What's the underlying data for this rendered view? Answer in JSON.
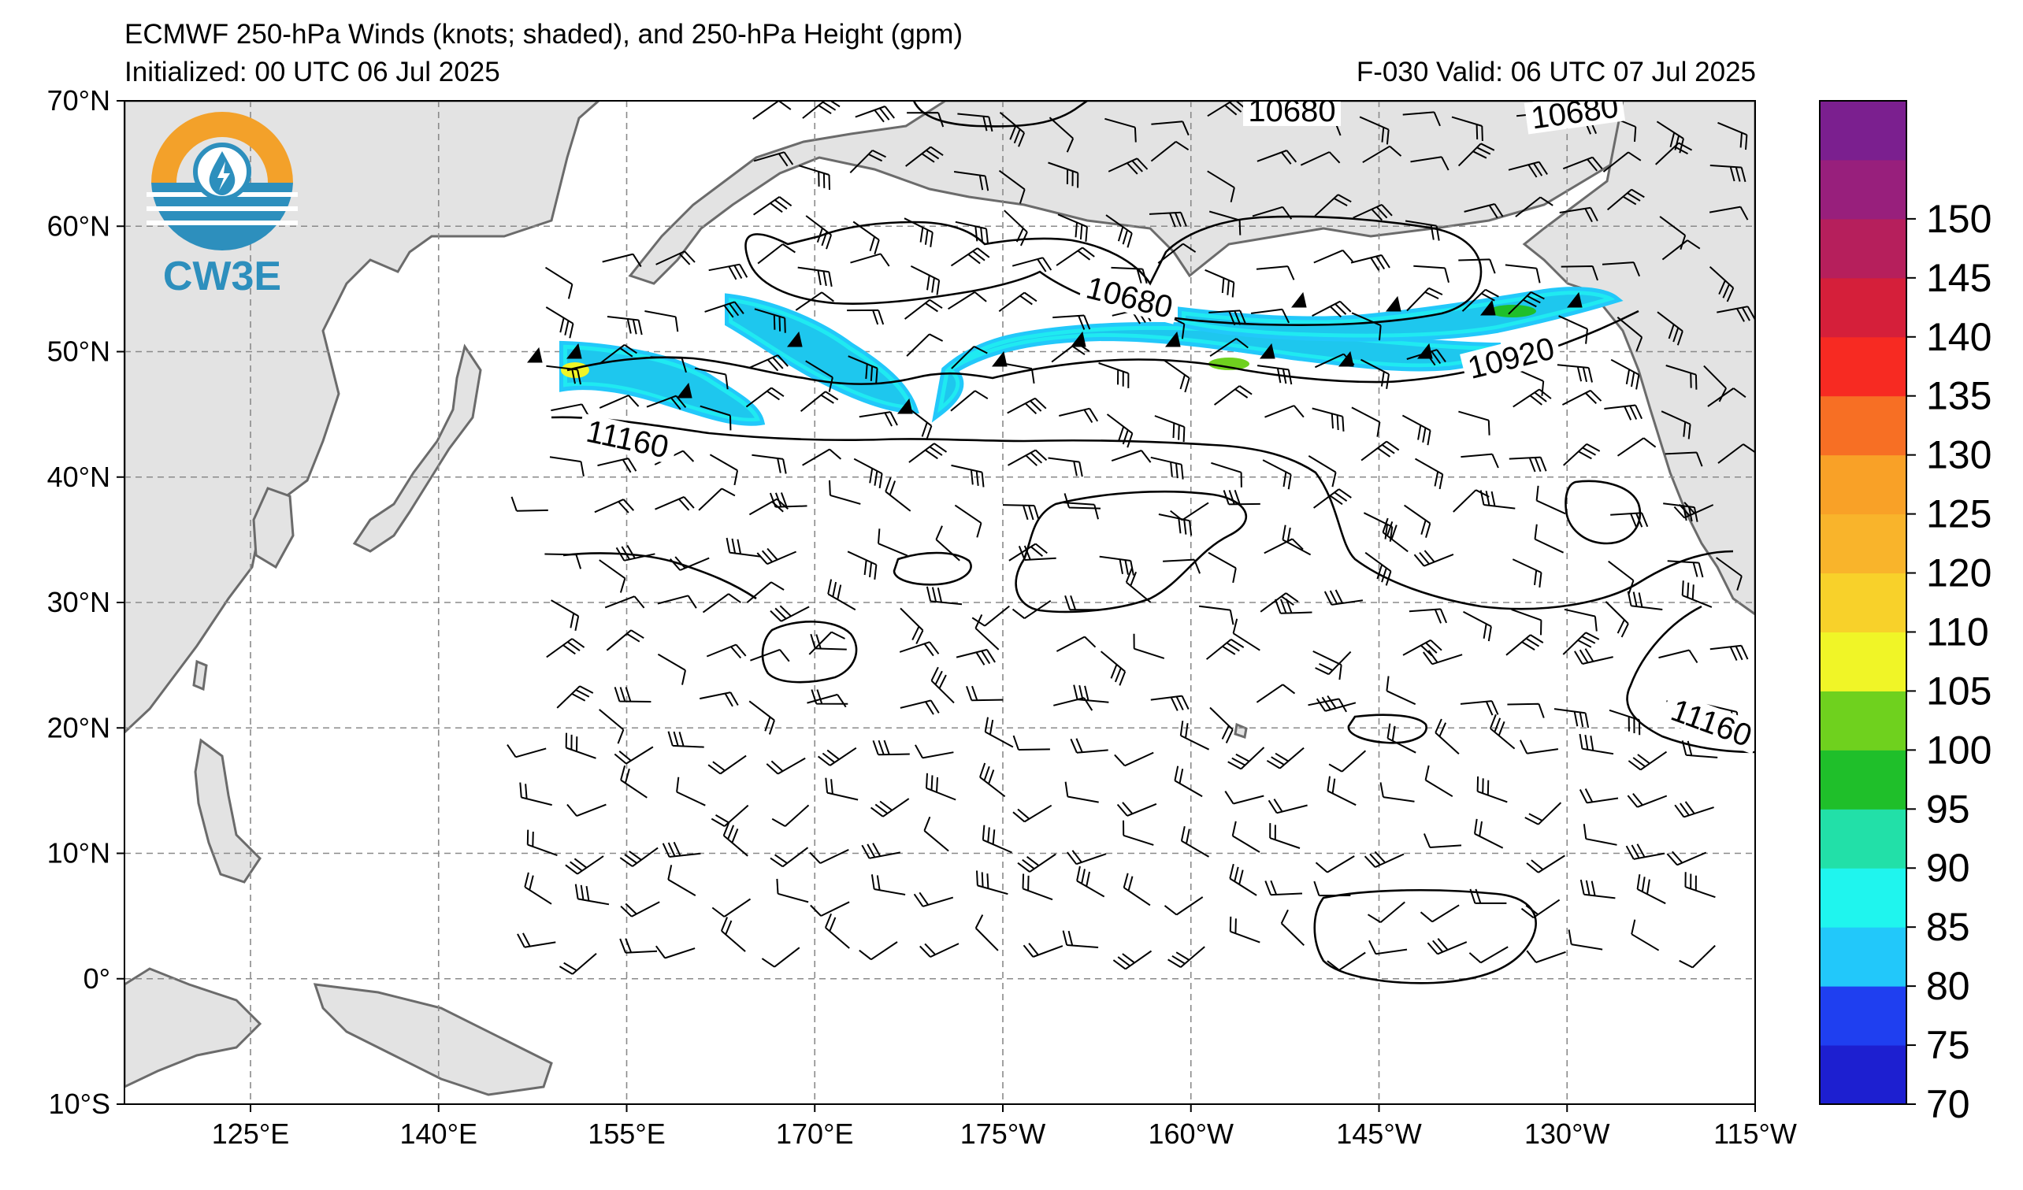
{
  "title_line1": "ECMWF 250-hPa Winds (knots; shaded), and 250-hPa Height (gpm)",
  "initialized": "Initialized: 00 UTC 06 Jul 2025",
  "valid": "F-030  Valid: 06 UTC 07 Jul 2025",
  "logo_text": "CW3E",
  "map": {
    "lon_labels": [
      "125°E",
      "140°E",
      "155°E",
      "170°E",
      "175°W",
      "160°W",
      "145°W",
      "130°W",
      "115°W"
    ],
    "lat_labels": [
      "70°N",
      "60°N",
      "50°N",
      "40°N",
      "30°N",
      "20°N",
      "10°N",
      "0°",
      "10°S"
    ],
    "contour_labels": [
      {
        "text": "10680"
      },
      {
        "text": "10680"
      },
      {
        "text": "10680"
      },
      {
        "text": "10920"
      },
      {
        "text": "11160"
      },
      {
        "text": "11160"
      }
    ]
  },
  "colorbar": {
    "ticks": [
      "70",
      "75",
      "80",
      "85",
      "90",
      "95",
      "100",
      "105",
      "110",
      "120",
      "125",
      "130",
      "135",
      "140",
      "145",
      "150"
    ],
    "colors": [
      "#1d1fd0",
      "#1f3ff0",
      "#22c8fa",
      "#1ff5ee",
      "#22e0a8",
      "#1fbf2a",
      "#6fd11e",
      "#f0f527",
      "#f8d12a",
      "#f9b42b",
      "#f9a127",
      "#f76f24",
      "#f72a22",
      "#d51f3a",
      "#b61f5c",
      "#981f7c",
      "#7b1f8f"
    ]
  },
  "colors": {
    "land": "#e3e3e3",
    "coast": "#6b6b6b",
    "grid": "#8a8a8a",
    "logo_orange": "#f3a12a",
    "logo_blue": "#2d8fbd"
  }
}
